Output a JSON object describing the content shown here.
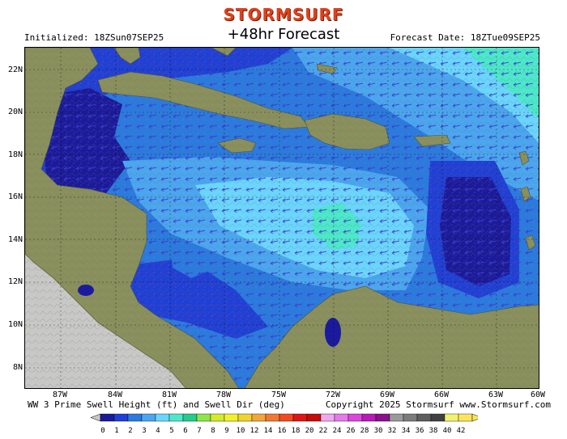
{
  "header": {
    "logo": "STORMSURF",
    "title": "+48hr Forecast",
    "initialized": "Initialized: 18ZSun07SEP25",
    "forecast_date": "Forecast Date: 18ZTue09SEP25"
  },
  "footer": {
    "left": "WW 3 Prime Swell Height (ft) and Swell Dir (deg)",
    "right": "Copyright 2025 Stormsurf www.Stormsurf.com"
  },
  "axes": {
    "lat_labels": [
      "22N",
      "20N",
      "18N",
      "16N",
      "14N",
      "12N",
      "10N",
      "8N"
    ],
    "lon_labels": [
      "87W",
      "84W",
      "81W",
      "78W",
      "75W",
      "72W",
      "69W",
      "66W",
      "63W",
      "60W"
    ]
  },
  "legend": {
    "labels": [
      "0",
      "1",
      "2",
      "3",
      "4",
      "5",
      "6",
      "7",
      "8",
      "9",
      "10",
      "12",
      "14",
      "16",
      "18",
      "20",
      "22",
      "24",
      "26",
      "28",
      "30",
      "32",
      "34",
      "36",
      "38",
      "40",
      "42"
    ],
    "colors": [
      "#1c1a9c",
      "#1f3fd6",
      "#2a7ae0",
      "#4aa6f0",
      "#6ad6ff",
      "#4ce8cc",
      "#26cc8c",
      "#8ce64a",
      "#d2ec2a",
      "#f2f22a",
      "#f2d22e",
      "#f2a63a",
      "#f27830",
      "#f24a20",
      "#e01414",
      "#c80a0a",
      "#f0a8f0",
      "#e67ae6",
      "#dc46dc",
      "#b81ab8",
      "#8a1090",
      "#9a9a9a",
      "#7c7c7c",
      "#5e5e5e",
      "#404040",
      "#f2f26e",
      "#ffe45a"
    ]
  },
  "palette": {
    "land": "#8a8f5e",
    "land_dark": "#5f6a3e",
    "outside_domain": "#c8c8c8",
    "swell_0_1": "#1c1a9c",
    "swell_1_2": "#1f3fd6",
    "swell_2_3": "#2a7ae0",
    "swell_3_4": "#4aa6f0",
    "swell_4_5": "#6ad6ff",
    "swell_5_6": "#4ce8cc"
  }
}
